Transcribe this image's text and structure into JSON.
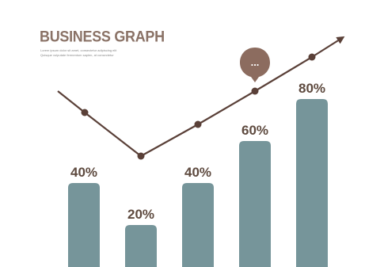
{
  "colors": {
    "bar": "#76959a",
    "line": "#5a4038",
    "title": "#8a7266",
    "bubble": "#8c6c5f",
    "label": "#5e4a3f"
  },
  "header": {
    "title": "BUSINESS GRAPH",
    "subtitle_lines": [
      "Lorem ipsum dolor sit amet, consectetur adipiscing elit",
      "Quisque vulputate fermentum sapien, at consectetur"
    ]
  },
  "callout": {
    "icon": "speech-bubble-icon",
    "text": "..."
  },
  "chart_data": {
    "type": "bar",
    "title": "BUSINESS GRAPH",
    "xlabel": "",
    "ylabel": "",
    "ylim": [
      0,
      100
    ],
    "grid": false,
    "legend": "none",
    "categories": [
      "",
      "",
      "",
      "",
      ""
    ],
    "values": [
      40,
      20,
      40,
      60,
      80
    ],
    "data_labels": [
      "40%",
      "20%",
      "40%",
      "60%",
      "80%"
    ],
    "trend_line": {
      "type": "line",
      "marker_count": 7,
      "ends_with": "arrow"
    }
  }
}
